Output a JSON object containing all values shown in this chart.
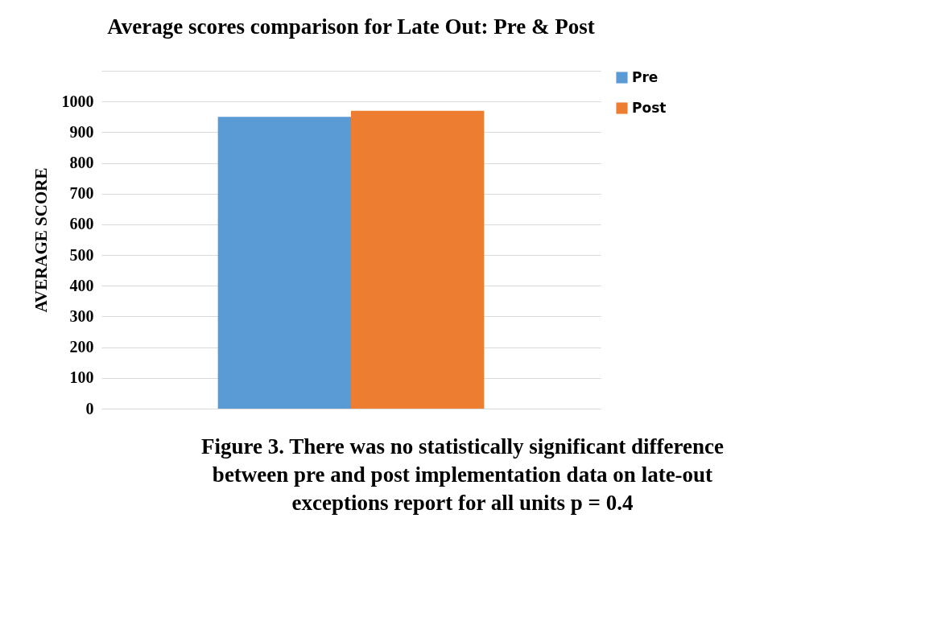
{
  "chart_data": {
    "type": "bar",
    "title": "Average scores comparison for Late Out:  Pre & Post",
    "ylabel": "AVERAGE SCORE",
    "categories": [
      null
    ],
    "series": [
      {
        "name": "Pre",
        "color": "#5b9bd5",
        "values": [
          950
        ]
      },
      {
        "name": "Post",
        "color": "#ed7d31",
        "values": [
          970
        ]
      }
    ],
    "ylim": [
      0,
      1100
    ],
    "yticks": [
      0,
      100,
      200,
      300,
      400,
      500,
      600,
      700,
      800,
      900,
      1000,
      {
        "value": 1100,
        "label": null
      }
    ],
    "grid": "y",
    "legend": "right",
    "annotations": [
      "Figure 3. There was no statistically significant difference between pre and post implementation data on late-out exceptions report for all units p = 0.4"
    ]
  }
}
